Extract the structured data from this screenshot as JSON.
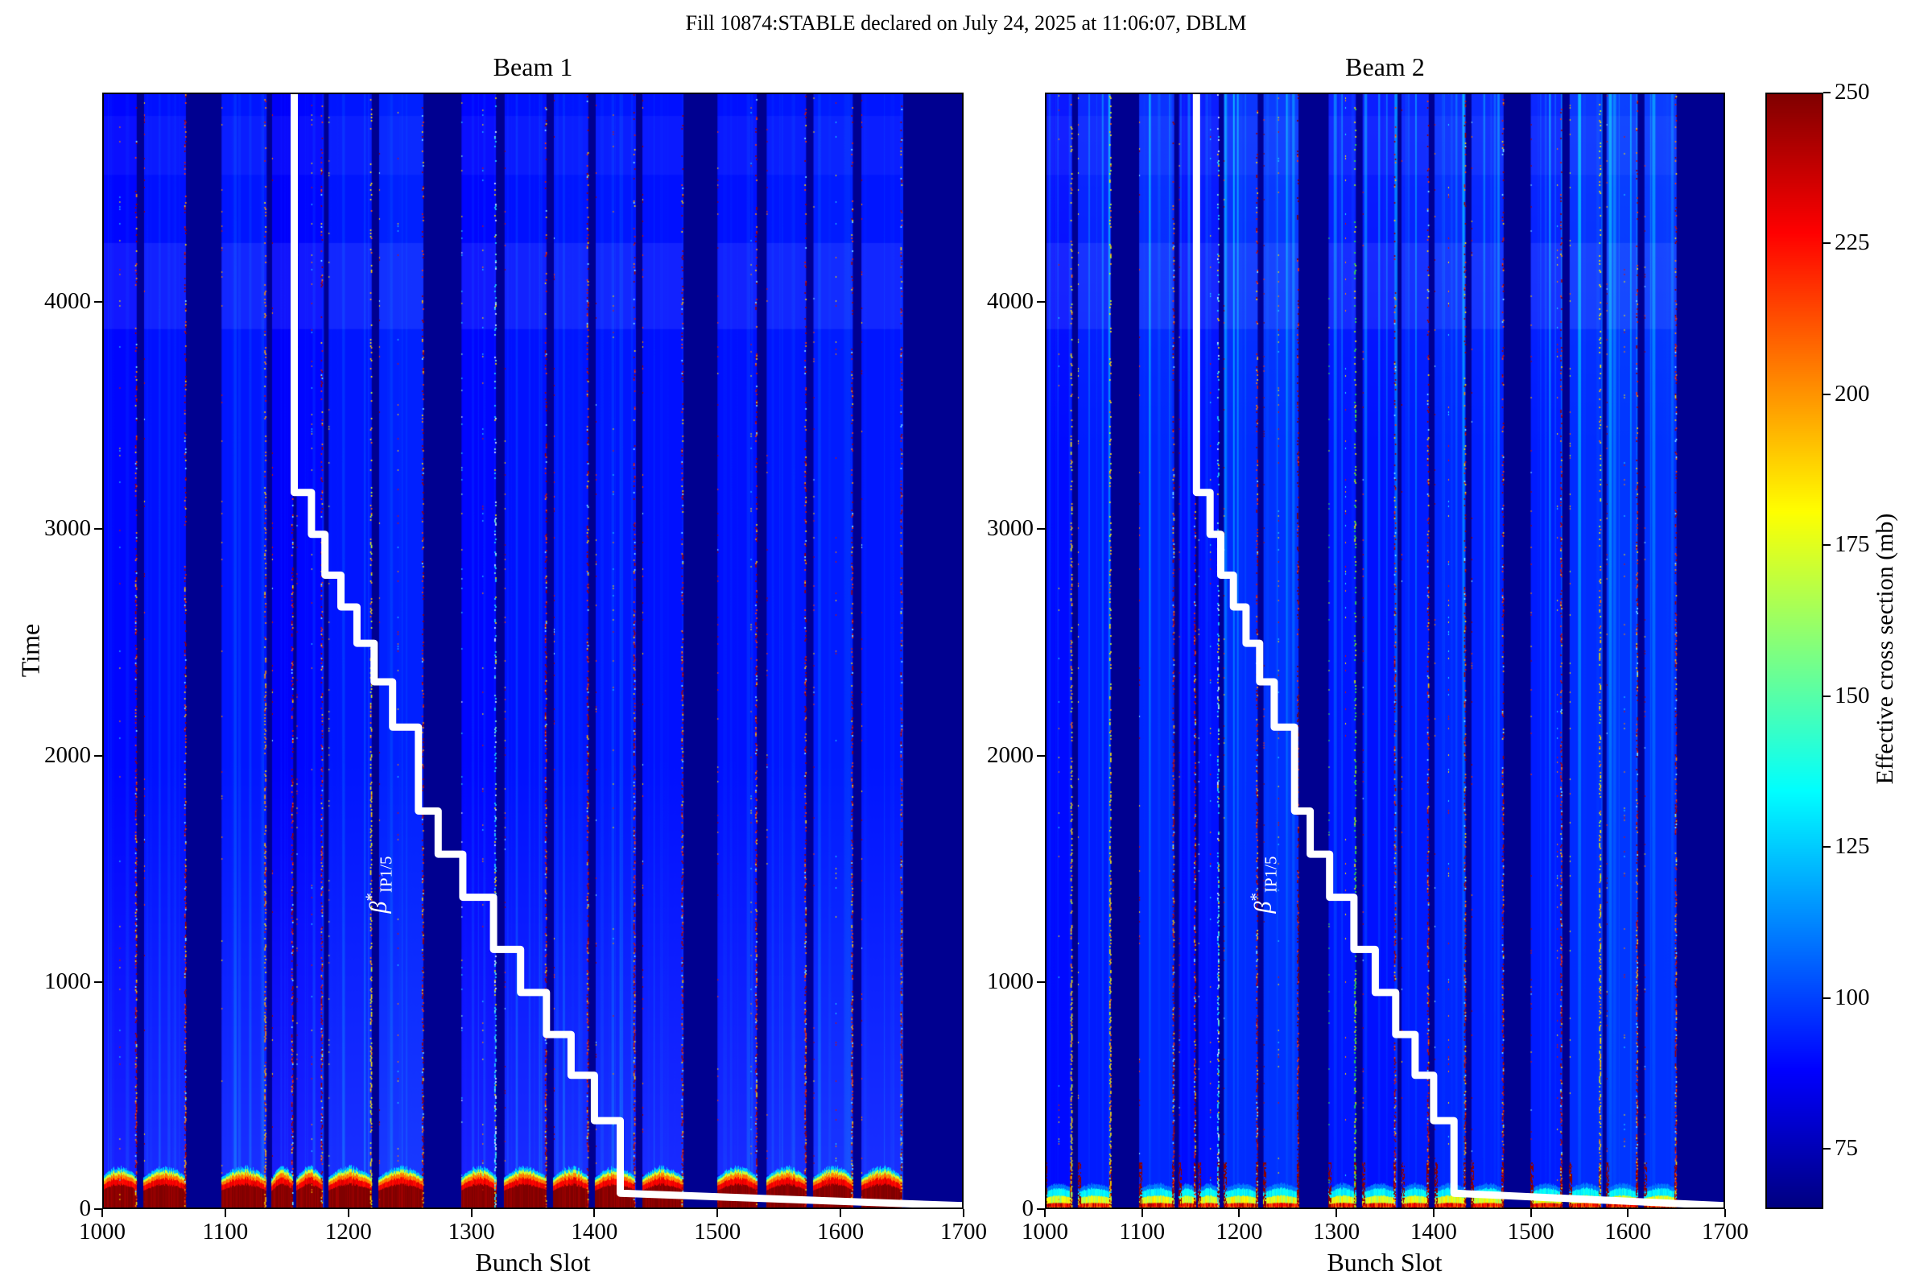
{
  "title": "Fill 10874:STABLE declared on July 24, 2025 at 11:06:07, DBLM",
  "panels": [
    {
      "id": "beam1",
      "title": "Beam 1",
      "xlabel": "Bunch Slot",
      "ylabel": "Time"
    },
    {
      "id": "beam2",
      "title": "Beam 2",
      "xlabel": "Bunch Slot",
      "ylabel": ""
    }
  ],
  "colorbar": {
    "label": "Effective cross section (mb)",
    "ticks": [
      250,
      225,
      200,
      175,
      150,
      125,
      100,
      75
    ],
    "vmin": 65,
    "vmax": 250,
    "colormap": "jet"
  },
  "chart_data": {
    "type": "heatmap",
    "title": "Fill 10874:STABLE declared on July 24, 2025 at 11:06:07, DBLM",
    "xlabel": "Bunch Slot",
    "ylabel": "Time",
    "xlim": [
      1000,
      1700
    ],
    "ylim": [
      0,
      4923
    ],
    "xticks": [
      1000,
      1100,
      1200,
      1300,
      1400,
      1500,
      1600,
      1700
    ],
    "yticks": [
      0,
      1000,
      2000,
      3000,
      4000
    ],
    "value_label": "Effective cross section (mb)",
    "value_range": [
      65,
      250
    ],
    "colormap": "jet",
    "grid": false,
    "panels": [
      {
        "name": "Beam 1",
        "base_gap_value": 68,
        "bottom_style": "hot-red"
      },
      {
        "name": "Beam 2",
        "base_gap_value": 68,
        "bottom_style": "cyan-stripe"
      }
    ],
    "bands": [
      {
        "start": 1000,
        "end": 1028,
        "v1": 89,
        "v2": 90,
        "e1": "red",
        "e2": "yellow"
      },
      {
        "start": 1034,
        "end": 1068,
        "v1": 91,
        "v2": 93,
        "e1": "red",
        "e2": "yellow"
      },
      {
        "start": 1097,
        "end": 1133,
        "v1": 92,
        "v2": 95,
        "e1": "orange",
        "e2": "red"
      },
      {
        "start": 1138,
        "end": 1155,
        "v1": 87,
        "v2": 90,
        "e1": "red",
        "e2": "red"
      },
      {
        "start": 1158,
        "end": 1179,
        "v1": 89,
        "v2": 91,
        "e1": "red",
        "e2": "cyan"
      },
      {
        "start": 1184,
        "end": 1219,
        "v1": 92,
        "v2": 96,
        "e1": "yellow",
        "e2": "red"
      },
      {
        "start": 1225,
        "end": 1261,
        "v1": 94,
        "v2": 97,
        "e1": "red",
        "e2": "darkred"
      },
      {
        "start": 1292,
        "end": 1320,
        "v1": 89,
        "v2": 92,
        "e1": "cyan",
        "e2": "green"
      },
      {
        "start": 1327,
        "end": 1361,
        "v1": 91,
        "v2": 91,
        "e1": "red",
        "e2": "red"
      },
      {
        "start": 1367,
        "end": 1395,
        "v1": 92,
        "v2": 93,
        "e1": "red",
        "e2": "red"
      },
      {
        "start": 1401,
        "end": 1433,
        "v1": 92,
        "v2": 95,
        "e1": "red",
        "e2": "red"
      },
      {
        "start": 1439,
        "end": 1472,
        "v1": 91,
        "v2": 94,
        "e1": "red",
        "e2": "red"
      },
      {
        "start": 1500,
        "end": 1532,
        "v1": 91,
        "v2": 93,
        "e1": "red",
        "e2": "red"
      },
      {
        "start": 1540,
        "end": 1572,
        "v1": 92,
        "v2": 96,
        "e1": "red",
        "e2": "yellow"
      },
      {
        "start": 1578,
        "end": 1610,
        "v1": 93,
        "v2": 98,
        "e1": "red",
        "e2": "red"
      },
      {
        "start": 1617,
        "end": 1650,
        "v1": 92,
        "v2": 97,
        "e1": "red",
        "e2": "red"
      }
    ],
    "inner_lines": [
      1014,
      1170,
      1240,
      1309,
      1415,
      1527,
      1596
    ],
    "light_stripes": [
      {
        "t0": 3880,
        "t1": 4260,
        "alpha": 0.09
      },
      {
        "t0": 4560,
        "t1": 4820,
        "alpha": 0.05
      }
    ],
    "beta_star": {
      "label_beta": "β",
      "label_sup": "*",
      "label_sub": "IP1/5",
      "label_anchor": [
        1225,
        1430
      ],
      "line_color": "#ffffff",
      "points": [
        [
          1156,
          4923
        ],
        [
          1156,
          3160
        ],
        [
          1170,
          3160
        ],
        [
          1170,
          2975
        ],
        [
          1181,
          2975
        ],
        [
          1181,
          2795
        ],
        [
          1194,
          2795
        ],
        [
          1194,
          2655
        ],
        [
          1207,
          2655
        ],
        [
          1207,
          2495
        ],
        [
          1221,
          2495
        ],
        [
          1221,
          2325
        ],
        [
          1236,
          2325
        ],
        [
          1236,
          2125
        ],
        [
          1257,
          2125
        ],
        [
          1257,
          1755
        ],
        [
          1273,
          1755
        ],
        [
          1273,
          1565
        ],
        [
          1293,
          1565
        ],
        [
          1293,
          1375
        ],
        [
          1318,
          1375
        ],
        [
          1318,
          1145
        ],
        [
          1340,
          1145
        ],
        [
          1340,
          955
        ],
        [
          1361,
          955
        ],
        [
          1361,
          770
        ],
        [
          1381,
          770
        ],
        [
          1381,
          590
        ],
        [
          1400,
          590
        ],
        [
          1400,
          390
        ],
        [
          1421,
          390
        ],
        [
          1421,
          70
        ],
        [
          1700,
          15
        ]
      ]
    }
  }
}
